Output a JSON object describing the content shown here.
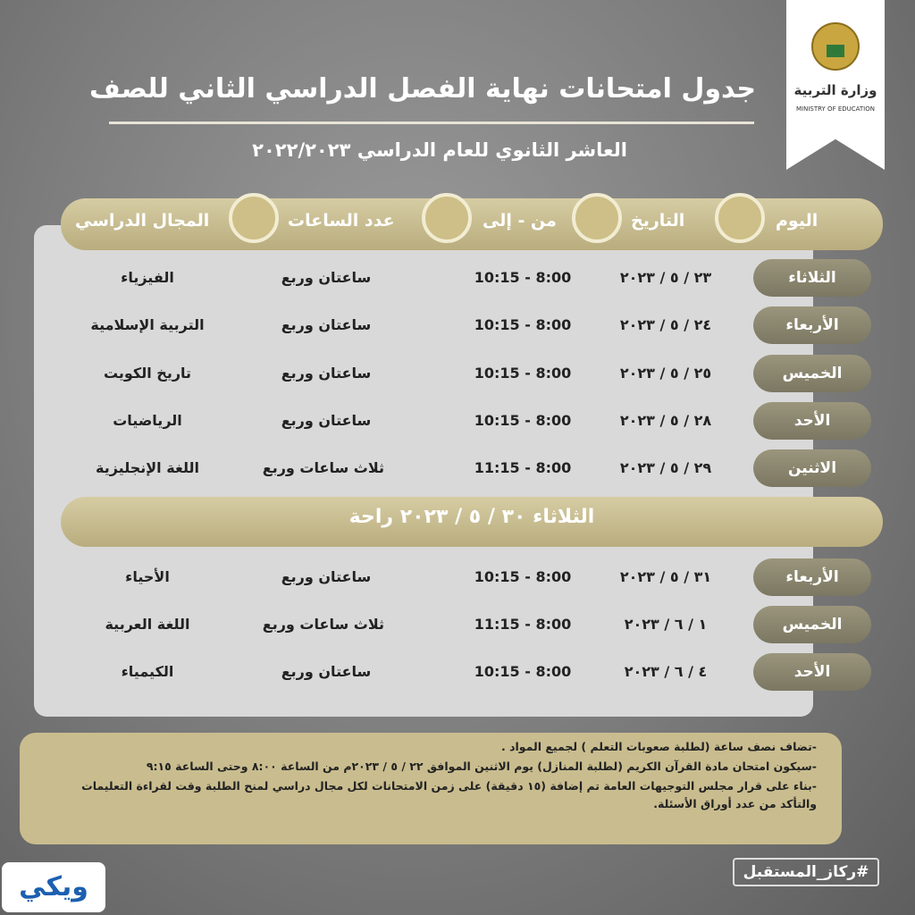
{
  "header": {
    "title": "جدول امتحانات نهاية الفصل الدراسي الثاني للصف",
    "subtitle": "العاشر الثانوي للعام الدراسي ٢٠٢٢/٢٠٢٣",
    "logo_ar": "وزارة التربية",
    "logo_en": "MINISTRY OF EDUCATION"
  },
  "table": {
    "columns": [
      "اليوم",
      "التاريخ",
      "من - إلى",
      "عدد الساعات",
      "المجال الدراسي"
    ],
    "rows": [
      [
        "الثلاثاء",
        "٢٣ / ٥ / ٢٠٢٣",
        "10:15 - 8:00",
        "ساعتان وربع",
        "الفيزياء"
      ],
      [
        "الأربعاء",
        "٢٤ / ٥ / ٢٠٢٣",
        "10:15 - 8:00",
        "ساعتان وربع",
        "التربية الإسلامية"
      ],
      [
        "الخميس",
        "٢٥ / ٥ / ٢٠٢٣",
        "10:15 - 8:00",
        "ساعتان وربع",
        "تاريخ الكويت"
      ],
      [
        "الأحد",
        "٢٨ / ٥ / ٢٠٢٣",
        "10:15 - 8:00",
        "ساعتان وربع",
        "الرياضيات"
      ],
      [
        "الاثنين",
        "٢٩ / ٥ / ٢٠٢٣",
        "11:15 - 8:00",
        "ثلاث ساعات وربع",
        "اللغة الإنجليزية"
      ],
      [
        "الأربعاء",
        "٣١ / ٥ / ٢٠٢٣",
        "10:15 - 8:00",
        "ساعتان وربع",
        "الأحياء"
      ],
      [
        "الخميس",
        "١ / ٦ / ٢٠٢٣",
        "11:15 - 8:00",
        "ثلاث ساعات وربع",
        "اللغة العربية"
      ],
      [
        "الأحد",
        "٤ / ٦ / ٢٠٢٣",
        "10:15 - 8:00",
        "ساعتان وربع",
        "الكيمياء"
      ]
    ],
    "rest_day": "الثلاثاء ٣٠ / ٥ / ٢٠٢٣ راحة"
  },
  "notes": [
    "-تضاف نصف ساعة (لطلبة صعوبات التعلم ) لجميع المواد .",
    "-سيكون امتحان مادة القرآن الكريم (لطلبة المنازل) يوم الاثنين الموافق ٢٢ / ٥ / ٢٠٢٣م من الساعة ٨:٠٠ وحتى الساعة ٩:١٥",
    "-بناء على قرار مجلس التوجيهات العامة تم إضافة (١٥ دقيقة) على زمن الامتحانات لكل مجال دراسي لمنح الطلبة وقت لقراءة التعليمات والتأكد من عدد أوراق الأسئلة."
  ],
  "footer": {
    "hashtag": "#ركاز_المستقبل",
    "watermark": "ويكي"
  }
}
